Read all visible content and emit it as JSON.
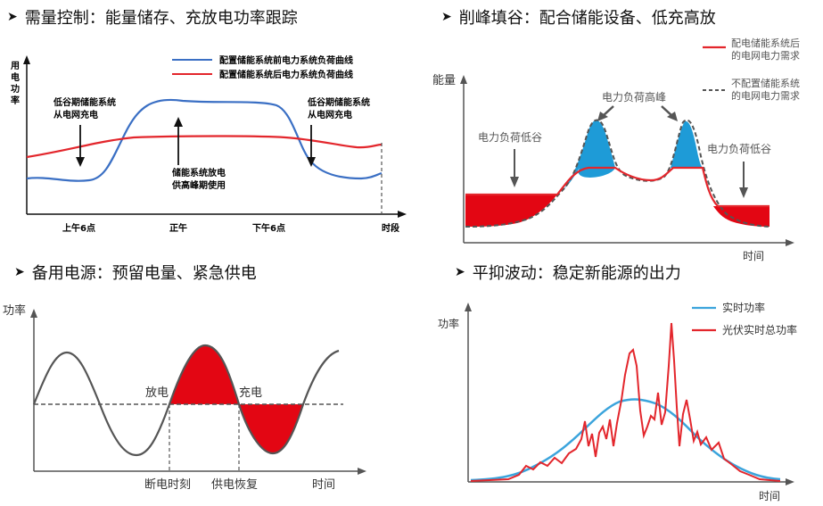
{
  "colors": {
    "blue": "#3A6FC4",
    "red": "#E3262C",
    "fill_red": "#E30613",
    "fill_blue": "#1E9BD7",
    "light_blue": "#3BA4DC",
    "gray": "#555555",
    "black": "#111111"
  },
  "p1": {
    "arrow_icon": "triangle-right-icon",
    "title": "需量控制：能量储存、充放电功率跟踪",
    "ylabel": [
      "用",
      "电",
      "功",
      "率"
    ],
    "legend": {
      "before": "配置储能系统前电力系统负荷曲线",
      "after": "配置储能系统后电力系统负荷曲线"
    },
    "ann_left": [
      "低谷期储能系统",
      "从电网充电"
    ],
    "ann_right": [
      "低谷期储能系统",
      "从电网充电"
    ],
    "ann_mid": [
      "储能系统放电",
      "供高峰期使用"
    ],
    "xticks": [
      "上午6点",
      "正午",
      "下午6点"
    ],
    "xlabel": "时段"
  },
  "p2": {
    "arrow_icon": "triangle-right-icon",
    "title": "削峰填谷：配合储能设备、低充高放",
    "ylabel": "能量",
    "legend": {
      "with": [
        "配电储能系统后",
        "的电网电力需求"
      ],
      "without": [
        "不配置储能系统",
        "的电网电力需求"
      ]
    },
    "ann_valley_left": "电力负荷低谷",
    "ann_peak": "电力负荷高峰",
    "ann_valley_right": "电力负荷低谷",
    "xlabel": "时间"
  },
  "p3": {
    "arrow_icon": "triangle-right-icon",
    "title": "备用电源：预留电量、紧急供电",
    "ylabel": "功率",
    "discharge": "放电",
    "charge": "充电",
    "outage": "断电时刻",
    "restore": "供电恢复",
    "xlabel": "时间"
  },
  "p4": {
    "arrow_icon": "triangle-right-icon",
    "title": "平抑波动：稳定新能源的出力",
    "ylabel": "功率",
    "legend": {
      "realtime": "实时功率",
      "pv": "光伏实时总功率"
    },
    "xlabel": "时间"
  }
}
